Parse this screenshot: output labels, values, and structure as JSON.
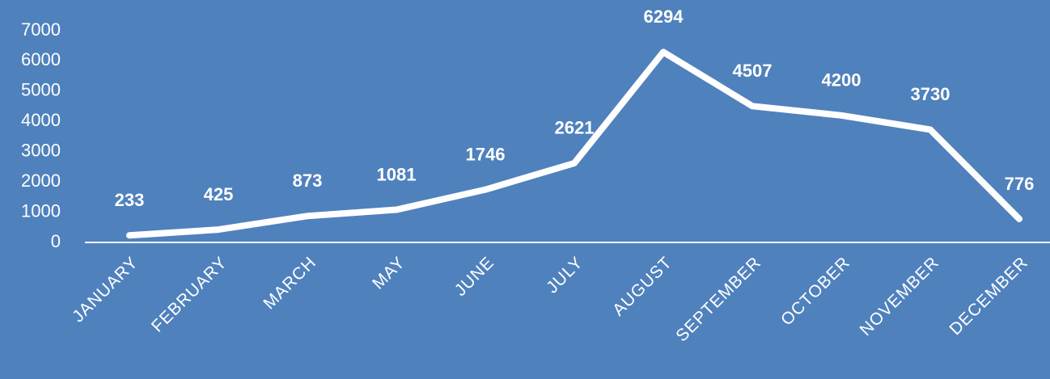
{
  "chart_data": {
    "type": "line",
    "categories": [
      "JANUARY",
      "FEBRUARY",
      "MARCH",
      "MAY",
      "JUNE",
      "JULY",
      "AUGUST",
      "SEPTEMBER",
      "OCTOBER",
      "NOVEMBER",
      "DECEMBER"
    ],
    "series": [
      {
        "color": "#ffffff",
        "values": [
          233,
          425,
          873,
          1081,
          1746,
          2621,
          6294,
          4507,
          4200,
          3730,
          776
        ]
      }
    ],
    "ylim": [
      0,
      7000
    ],
    "yticks": [
      0,
      1000,
      2000,
      3000,
      4000,
      5000,
      6000,
      7000
    ],
    "grid": false
  }
}
